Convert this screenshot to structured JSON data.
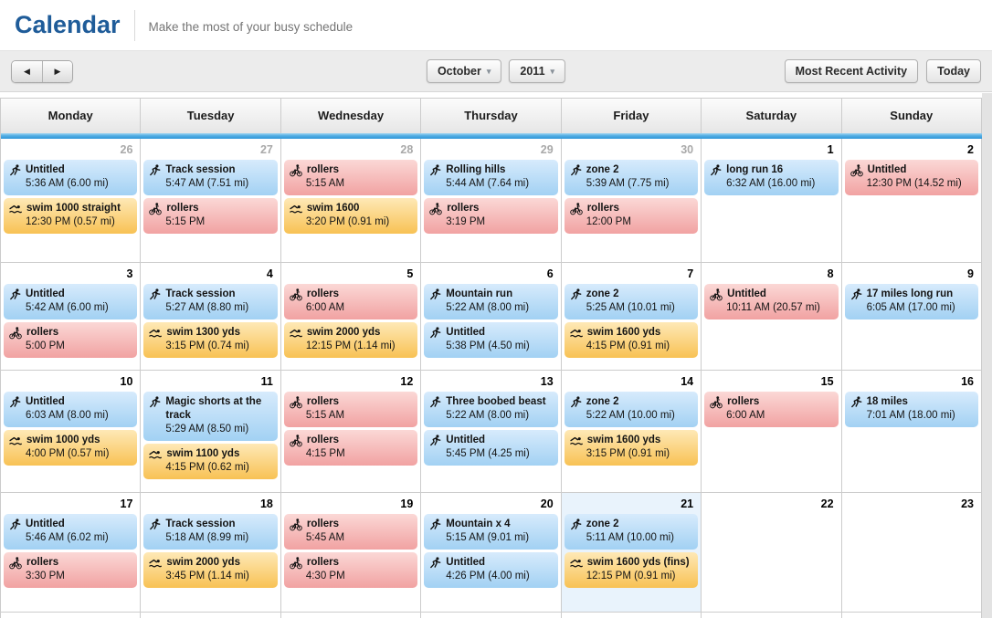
{
  "header": {
    "title": "Calendar",
    "subtitle": "Make the most of your busy schedule"
  },
  "toolbar": {
    "prev_icon": "◀",
    "next_icon": "▶",
    "caret_icon": "▾",
    "month": "October",
    "year": "2011",
    "most_recent_label": "Most Recent Activity",
    "today_label": "Today"
  },
  "colors": {
    "title_blue": "#1f5c99",
    "header_bar_blue": "#2e96d8",
    "run_event_blue": "#a2d1f3",
    "bike_event_red": "#f1a2a2",
    "swim_event_yellow": "#f8c254",
    "today_cell_highlight": "#e9f3fc"
  },
  "calendar": {
    "day_names": [
      "Monday",
      "Tuesday",
      "Wednesday",
      "Thursday",
      "Friday",
      "Saturday",
      "Sunday"
    ],
    "weeks": [
      {
        "days": [
          {
            "num": "26",
            "muted": true,
            "events": [
              {
                "type": "run",
                "title": "Untitled",
                "time": "5:36 AM (6.00 mi)"
              },
              {
                "type": "swim",
                "title": "swim 1000 straight",
                "time": "12:30 PM (0.57 mi)"
              }
            ]
          },
          {
            "num": "27",
            "muted": true,
            "events": [
              {
                "type": "run",
                "title": "Track session",
                "time": "5:47 AM (7.51 mi)"
              },
              {
                "type": "bike",
                "title": "rollers",
                "time": "5:15 PM"
              }
            ]
          },
          {
            "num": "28",
            "muted": true,
            "events": [
              {
                "type": "bike",
                "title": "rollers",
                "time": "5:15 AM"
              },
              {
                "type": "swim",
                "title": "swim 1600",
                "time": "3:20 PM (0.91 mi)"
              }
            ]
          },
          {
            "num": "29",
            "muted": true,
            "events": [
              {
                "type": "run",
                "title": "Rolling hills",
                "time": "5:44 AM (7.64 mi)"
              },
              {
                "type": "bike",
                "title": "rollers",
                "time": "3:19 PM"
              }
            ]
          },
          {
            "num": "30",
            "muted": true,
            "events": [
              {
                "type": "run",
                "title": "zone 2",
                "time": "5:39 AM (7.75 mi)"
              },
              {
                "type": "bike",
                "title": "rollers",
                "time": "12:00 PM"
              }
            ]
          },
          {
            "num": "1",
            "events": [
              {
                "type": "run",
                "title": "long run 16",
                "time": "6:32 AM (16.00 mi)"
              }
            ]
          },
          {
            "num": "2",
            "events": [
              {
                "type": "bike",
                "title": "Untitled",
                "time": "12:30 PM (14.52 mi)"
              }
            ]
          }
        ]
      },
      {
        "days": [
          {
            "num": "3",
            "events": [
              {
                "type": "run",
                "title": "Untitled",
                "time": "5:42 AM (6.00 mi)"
              },
              {
                "type": "bike",
                "title": "rollers",
                "time": "5:00 PM"
              }
            ]
          },
          {
            "num": "4",
            "events": [
              {
                "type": "run",
                "title": "Track session",
                "time": "5:27 AM (8.80 mi)"
              },
              {
                "type": "swim",
                "title": "swim 1300 yds",
                "time": "3:15 PM (0.74 mi)"
              }
            ]
          },
          {
            "num": "5",
            "events": [
              {
                "type": "bike",
                "title": "rollers",
                "time": "6:00 AM"
              },
              {
                "type": "swim",
                "title": "swim 2000 yds",
                "time": "12:15 PM (1.14 mi)"
              }
            ]
          },
          {
            "num": "6",
            "events": [
              {
                "type": "run",
                "title": "Mountain run",
                "time": "5:22 AM (8.00 mi)"
              },
              {
                "type": "run",
                "title": "Untitled",
                "time": "5:38 PM (4.50 mi)"
              }
            ]
          },
          {
            "num": "7",
            "events": [
              {
                "type": "run",
                "title": "zone 2",
                "time": "5:25 AM (10.01 mi)"
              },
              {
                "type": "swim",
                "title": "swim 1600 yds",
                "time": "4:15 PM (0.91 mi)"
              }
            ]
          },
          {
            "num": "8",
            "events": [
              {
                "type": "bike",
                "title": "Untitled",
                "time": "10:11 AM (20.57 mi)"
              }
            ]
          },
          {
            "num": "9",
            "events": [
              {
                "type": "run",
                "title": "17 miles long run",
                "time": "6:05 AM (17.00 mi)"
              }
            ]
          }
        ]
      },
      {
        "days": [
          {
            "num": "10",
            "events": [
              {
                "type": "run",
                "title": "Untitled",
                "time": "6:03 AM (8.00 mi)"
              },
              {
                "type": "swim",
                "title": "swim 1000 yds",
                "time": "4:00 PM (0.57 mi)"
              }
            ]
          },
          {
            "num": "11",
            "events": [
              {
                "type": "run",
                "title": "Magic shorts at the track",
                "time": "5:29 AM (8.50 mi)"
              },
              {
                "type": "swim",
                "title": "swim 1100 yds",
                "time": "4:15 PM (0.62 mi)"
              }
            ]
          },
          {
            "num": "12",
            "events": [
              {
                "type": "bike",
                "title": "rollers",
                "time": "5:15 AM"
              },
              {
                "type": "bike",
                "title": "rollers",
                "time": "4:15 PM"
              }
            ]
          },
          {
            "num": "13",
            "events": [
              {
                "type": "run",
                "title": "Three boobed beast",
                "time": "5:22 AM (8.00 mi)"
              },
              {
                "type": "run",
                "title": "Untitled",
                "time": "5:45 PM (4.25 mi)"
              }
            ]
          },
          {
            "num": "14",
            "events": [
              {
                "type": "run",
                "title": "zone 2",
                "time": "5:22 AM (10.00 mi)"
              },
              {
                "type": "swim",
                "title": "swim 1600 yds",
                "time": "3:15 PM (0.91 mi)"
              }
            ]
          },
          {
            "num": "15",
            "events": [
              {
                "type": "bike",
                "title": "rollers",
                "time": "6:00 AM"
              }
            ]
          },
          {
            "num": "16",
            "events": [
              {
                "type": "run",
                "title": "18 miles",
                "time": "7:01 AM (18.00 mi)"
              }
            ]
          }
        ]
      },
      {
        "days": [
          {
            "num": "17",
            "events": [
              {
                "type": "run",
                "title": "Untitled",
                "time": "5:46 AM (6.02 mi)"
              },
              {
                "type": "bike",
                "title": "rollers",
                "time": "3:30 PM"
              }
            ]
          },
          {
            "num": "18",
            "events": [
              {
                "type": "run",
                "title": "Track session",
                "time": "5:18 AM (8.99 mi)"
              },
              {
                "type": "swim",
                "title": "swim 2000 yds",
                "time": "3:45 PM (1.14 mi)"
              }
            ]
          },
          {
            "num": "19",
            "events": [
              {
                "type": "bike",
                "title": "rollers",
                "time": "5:45 AM"
              },
              {
                "type": "bike",
                "title": "rollers",
                "time": "4:30 PM"
              }
            ]
          },
          {
            "num": "20",
            "events": [
              {
                "type": "run",
                "title": "Mountain x 4",
                "time": "5:15 AM (9.01 mi)"
              },
              {
                "type": "run",
                "title": "Untitled",
                "time": "4:26 PM (4.00 mi)"
              }
            ]
          },
          {
            "num": "21",
            "highlight": true,
            "events": [
              {
                "type": "run",
                "title": "zone 2",
                "time": "5:11 AM (10.00 mi)"
              },
              {
                "type": "swim",
                "title": "swim 1600 yds (fins)",
                "time": "12:15 PM (0.91 mi)"
              }
            ]
          },
          {
            "num": "22",
            "events": []
          },
          {
            "num": "23",
            "events": []
          }
        ]
      }
    ]
  }
}
